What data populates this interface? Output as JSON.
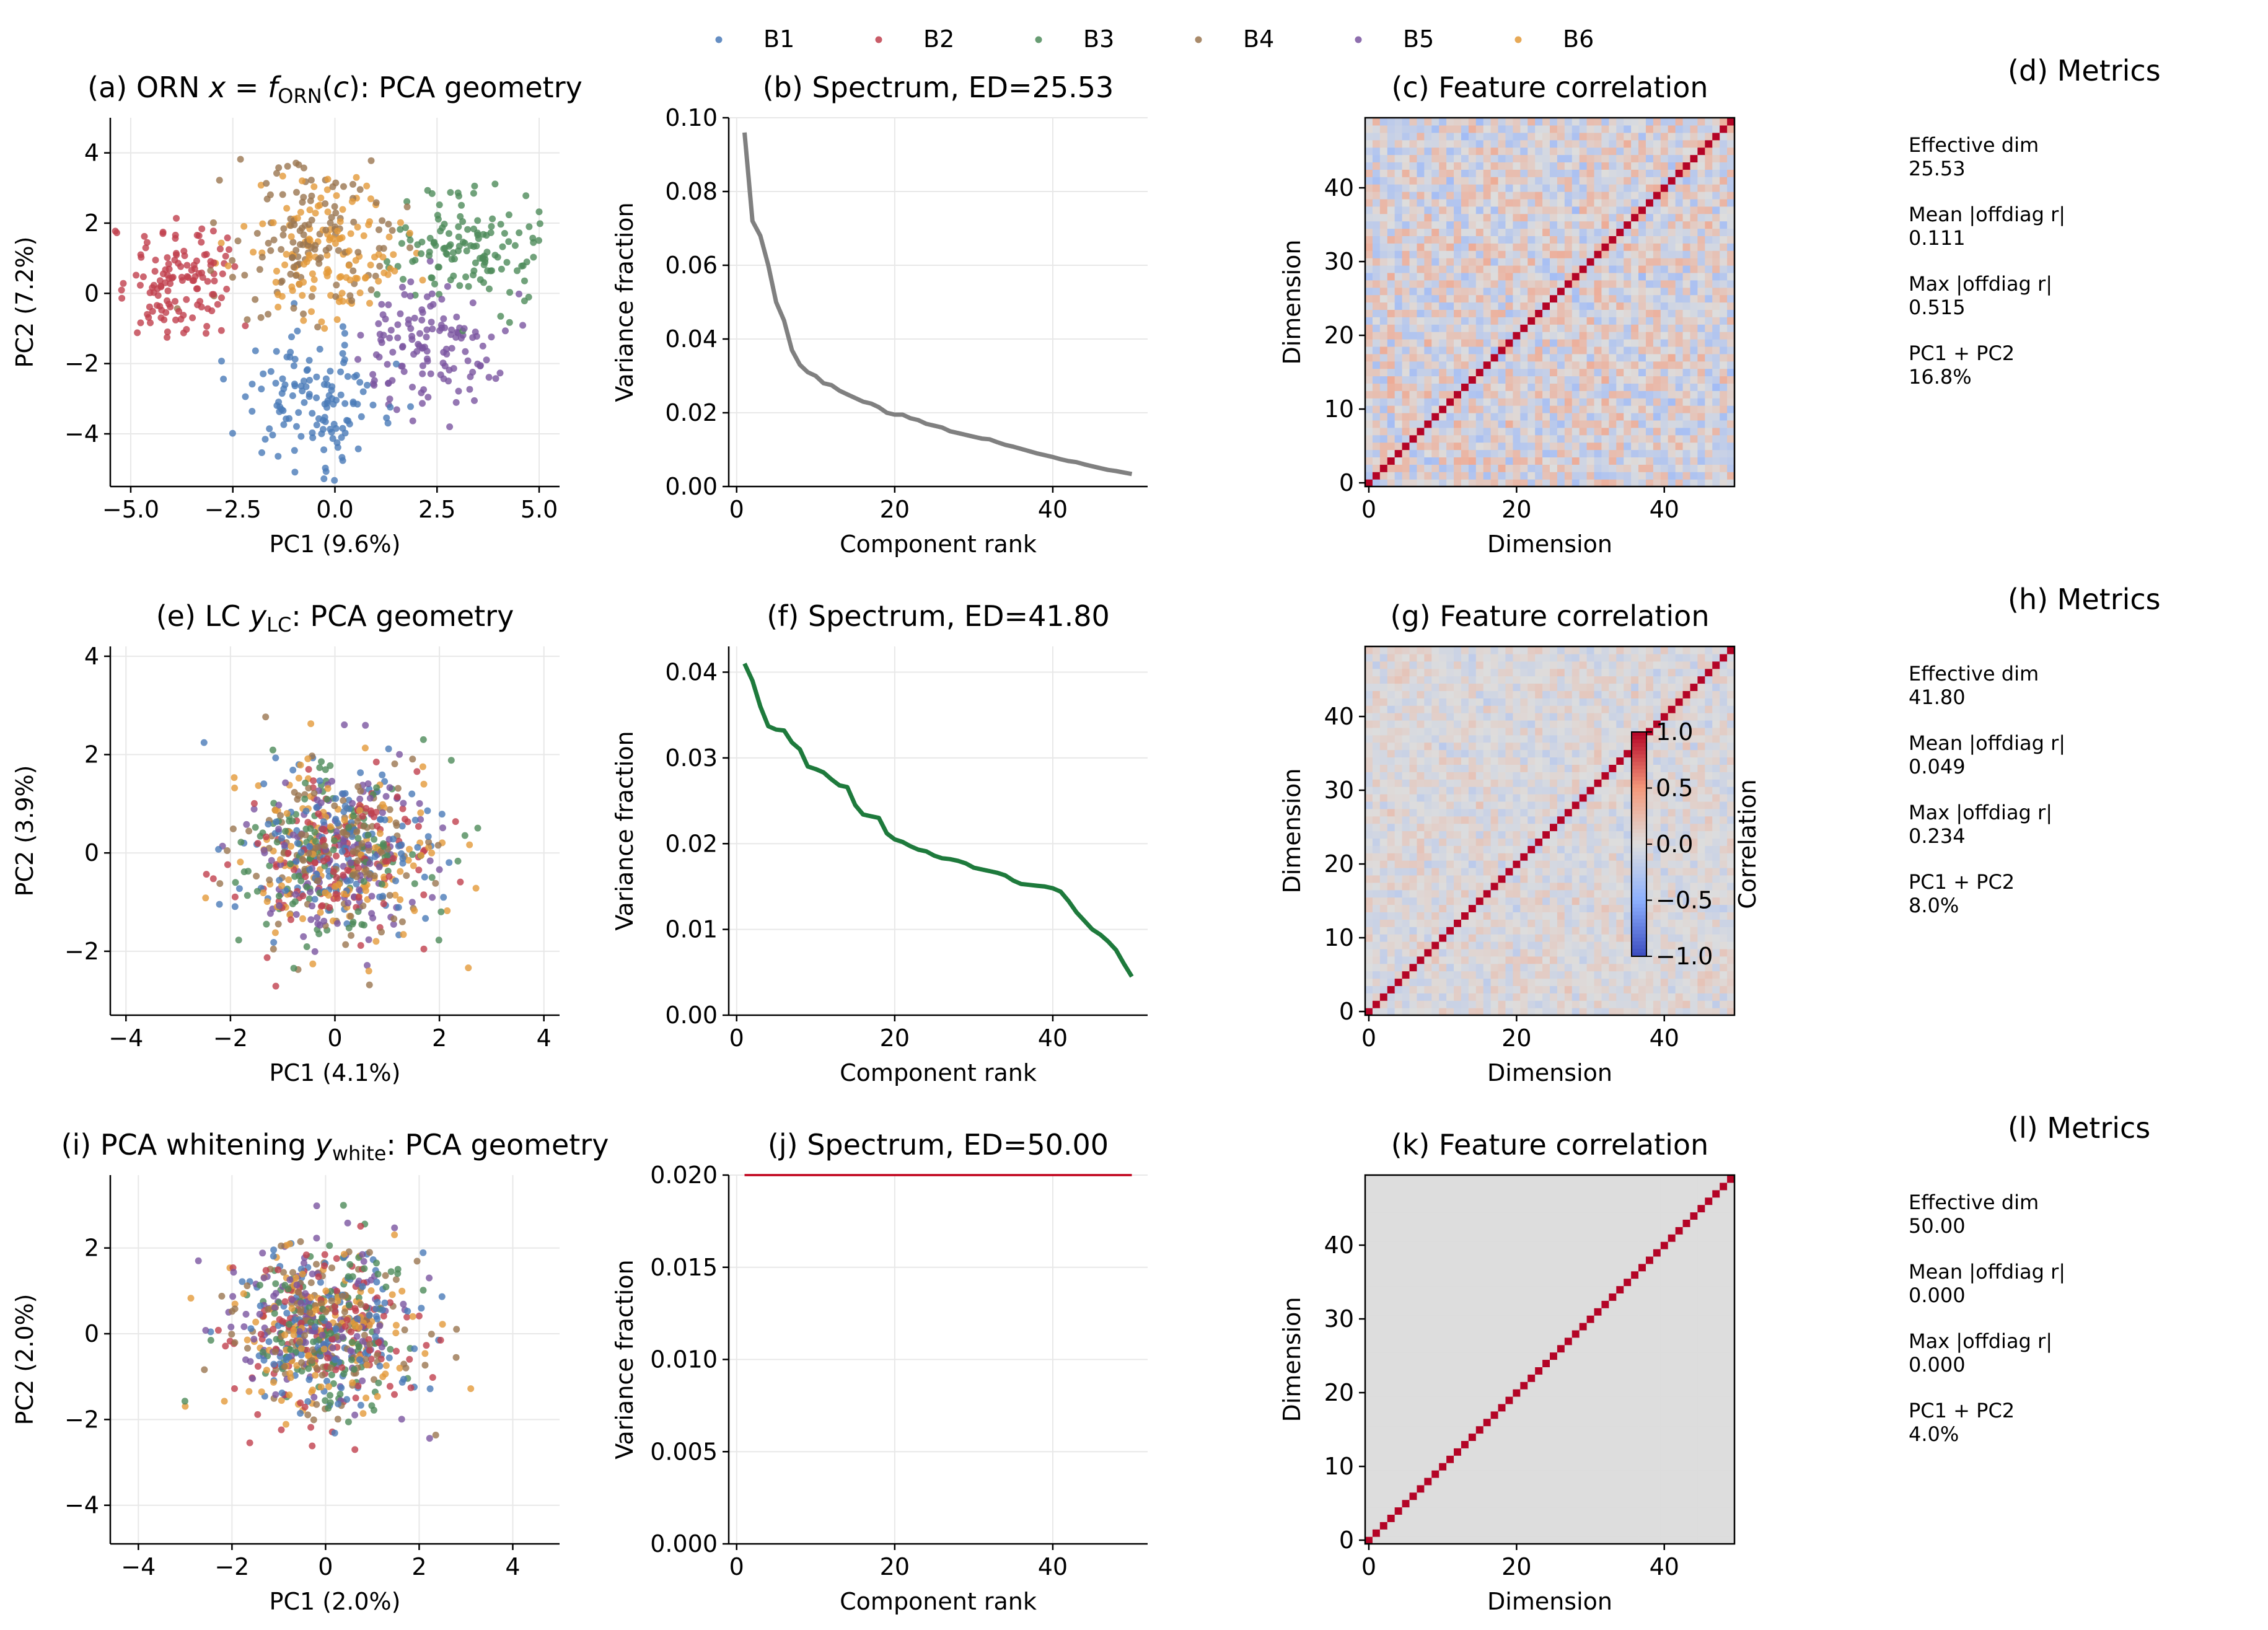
{
  "legend": {
    "entries": [
      "B1",
      "B2",
      "B3",
      "B4",
      "B5",
      "B6"
    ],
    "colors": [
      "#4a7ab8",
      "#c0404e",
      "#4e8b5a",
      "#9a7550",
      "#7a55a0",
      "#e39a3a"
    ]
  },
  "rows": [
    {
      "scatter_title_parts": [
        "(a) ORN ",
        "x",
        " = ",
        "f",
        "ORN",
        "(",
        "c",
        "): PCA geometry"
      ],
      "spectrum_title": "(b) Spectrum, ED=25.53",
      "corr_title": "(c) Feature correlation",
      "metrics_title": "(d) Metrics",
      "metrics": [
        {
          "label": "Effective dim",
          "value": "25.53"
        },
        {
          "label": "Mean |offdiag r|",
          "value": "0.111"
        },
        {
          "label": "Max |offdiag r|",
          "value": "0.515"
        },
        {
          "label": "PC1 + PC2",
          "value": "16.8%"
        }
      ]
    },
    {
      "scatter_title_parts": [
        "(e) LC ",
        "y",
        "LC",
        ": PCA geometry"
      ],
      "spectrum_title": "(f) Spectrum, ED=41.80",
      "corr_title": "(g) Feature correlation",
      "metrics_title": "(h) Metrics",
      "metrics": [
        {
          "label": "Effective dim",
          "value": "41.80"
        },
        {
          "label": "Mean |offdiag r|",
          "value": "0.049"
        },
        {
          "label": "Max |offdiag r|",
          "value": "0.234"
        },
        {
          "label": "PC1 + PC2",
          "value": "8.0%"
        }
      ]
    },
    {
      "scatter_title_parts": [
        "(i) PCA whitening ",
        "y",
        "white",
        ": PCA geometry"
      ],
      "spectrum_title": "(j) Spectrum, ED=50.00",
      "corr_title": "(k) Feature correlation",
      "metrics_title": "(l) Metrics",
      "metrics": [
        {
          "label": "Effective dim",
          "value": "50.00"
        },
        {
          "label": "Mean |offdiag r|",
          "value": "0.000"
        },
        {
          "label": "Max |offdiag r|",
          "value": "0.000"
        },
        {
          "label": "PC1 + PC2",
          "value": "4.0%"
        }
      ]
    }
  ],
  "colorbar": {
    "label": "Correlation",
    "ticks": [
      "1.0",
      "0.5",
      "0.0",
      "−0.5",
      "−1.0"
    ],
    "range": [
      -1,
      1
    ]
  },
  "chart_data": [
    {
      "panel": "a",
      "type": "scatter",
      "xlabel": "PC1 (9.6%)",
      "ylabel": "PC2 (7.2%)",
      "xlim": [
        -5.5,
        5.5
      ],
      "ylim": [
        -5.5,
        5
      ],
      "xticks": [
        -5,
        -2.5,
        0,
        2.5,
        5
      ],
      "xtick_labels": [
        "−5.0",
        "−2.5",
        "0.0",
        "2.5",
        "5.0"
      ],
      "yticks": [
        -4,
        -2,
        0,
        2,
        4
      ],
      "ytick_labels": [
        "−4",
        "−2",
        "0",
        "2",
        "4"
      ],
      "grid": true,
      "points_per_group": 130,
      "series": [
        {
          "name": "B1",
          "center": [
            -0.5,
            -3.0
          ],
          "spread": [
            0.9,
            0.9
          ]
        },
        {
          "name": "B2",
          "center": [
            -3.8,
            0.4
          ],
          "spread": [
            0.8,
            0.9
          ]
        },
        {
          "name": "B3",
          "center": [
            3.2,
            1.3
          ],
          "spread": [
            0.9,
            0.8
          ]
        },
        {
          "name": "B4",
          "center": [
            -0.6,
            1.6
          ],
          "spread": [
            1.0,
            1.1
          ]
        },
        {
          "name": "B5",
          "center": [
            2.3,
            -1.6
          ],
          "spread": [
            0.9,
            0.9
          ]
        },
        {
          "name": "B6",
          "center": [
            -0.3,
            1.3
          ],
          "spread": [
            1.0,
            0.9
          ]
        }
      ]
    },
    {
      "panel": "b",
      "type": "line",
      "xlabel": "Component rank",
      "ylabel": "Variance fraction",
      "xlim": [
        -1,
        52
      ],
      "ylim": [
        0,
        0.1
      ],
      "xticks": [
        0,
        20,
        40
      ],
      "xtick_labels": [
        "0",
        "20",
        "40"
      ],
      "yticks": [
        0,
        0.02,
        0.04,
        0.06,
        0.08,
        0.1
      ],
      "ytick_labels": [
        "0.00",
        "0.02",
        "0.04",
        "0.06",
        "0.08",
        "0.10"
      ],
      "grid": true,
      "color": "#808080",
      "x": [
        1,
        2,
        3,
        4,
        5,
        6,
        7,
        8,
        9,
        10,
        11,
        12,
        13,
        14,
        15,
        16,
        17,
        18,
        19,
        20,
        21,
        22,
        23,
        24,
        25,
        26,
        27,
        28,
        29,
        30,
        31,
        32,
        33,
        34,
        35,
        36,
        37,
        38,
        39,
        40,
        41,
        42,
        43,
        44,
        45,
        46,
        47,
        48,
        49,
        50
      ],
      "values": [
        0.096,
        0.072,
        0.068,
        0.06,
        0.05,
        0.045,
        0.037,
        0.033,
        0.031,
        0.03,
        0.028,
        0.0275,
        0.026,
        0.025,
        0.024,
        0.023,
        0.0225,
        0.0215,
        0.02,
        0.0195,
        0.0195,
        0.0185,
        0.018,
        0.017,
        0.0165,
        0.016,
        0.015,
        0.0145,
        0.014,
        0.0135,
        0.013,
        0.0128,
        0.012,
        0.0113,
        0.0108,
        0.0102,
        0.0096,
        0.009,
        0.0085,
        0.008,
        0.0074,
        0.0069,
        0.0066,
        0.006,
        0.0055,
        0.005,
        0.0045,
        0.0042,
        0.0038,
        0.0034
      ]
    },
    {
      "panel": "c",
      "type": "heatmap",
      "xlabel": "Dimension",
      "ylabel": "Dimension",
      "size": 50,
      "diagonal": 1.0,
      "offdiag_amplitude": 0.32,
      "cmap": "coolwarm",
      "range": [
        -1,
        1
      ],
      "xticks": [
        0,
        20,
        40
      ],
      "xtick_labels": [
        "0",
        "20",
        "40"
      ],
      "yticks": [
        0,
        10,
        20,
        30,
        40
      ],
      "ytick_labels": [
        "0",
        "10",
        "20",
        "30",
        "40"
      ]
    },
    {
      "panel": "e",
      "type": "scatter",
      "xlabel": "PC1 (4.1%)",
      "ylabel": "PC2 (3.9%)",
      "xlim": [
        -4.3,
        4.3
      ],
      "ylim": [
        -3.3,
        4.2
      ],
      "xticks": [
        -4,
        -2,
        0,
        2,
        4
      ],
      "xtick_labels": [
        "−4",
        "−2",
        "0",
        "2",
        "4"
      ],
      "yticks": [
        -2,
        0,
        2,
        4
      ],
      "ytick_labels": [
        "−2",
        "0",
        "2",
        "4"
      ],
      "grid": true,
      "points_per_group": 130,
      "series": [
        {
          "name": "B1",
          "center": [
            0,
            0
          ],
          "spread": [
            0.9,
            0.85
          ]
        },
        {
          "name": "B2",
          "center": [
            0,
            0
          ],
          "spread": [
            0.9,
            0.85
          ]
        },
        {
          "name": "B3",
          "center": [
            0,
            0
          ],
          "spread": [
            0.95,
            0.9
          ]
        },
        {
          "name": "B4",
          "center": [
            0,
            0
          ],
          "spread": [
            0.9,
            0.85
          ]
        },
        {
          "name": "B5",
          "center": [
            0,
            0
          ],
          "spread": [
            0.9,
            0.85
          ]
        },
        {
          "name": "B6",
          "center": [
            0,
            0
          ],
          "spread": [
            1.0,
            0.9
          ]
        }
      ]
    },
    {
      "panel": "f",
      "type": "line",
      "xlabel": "Component rank",
      "ylabel": "Variance fraction",
      "xlim": [
        -1,
        52
      ],
      "ylim": [
        0,
        0.043
      ],
      "xticks": [
        0,
        20,
        40
      ],
      "xtick_labels": [
        "0",
        "20",
        "40"
      ],
      "yticks": [
        0,
        0.01,
        0.02,
        0.03,
        0.04
      ],
      "ytick_labels": [
        "0.00",
        "0.01",
        "0.02",
        "0.03",
        "0.04"
      ],
      "grid": true,
      "color": "#1e7a3c",
      "x": [
        1,
        2,
        3,
        4,
        5,
        6,
        7,
        8,
        9,
        10,
        11,
        12,
        13,
        14,
        15,
        16,
        17,
        18,
        19,
        20,
        21,
        22,
        23,
        24,
        25,
        26,
        27,
        28,
        29,
        30,
        31,
        32,
        33,
        34,
        35,
        36,
        37,
        38,
        39,
        40,
        41,
        42,
        43,
        44,
        45,
        46,
        47,
        48,
        49,
        50
      ],
      "values": [
        0.041,
        0.039,
        0.036,
        0.0337,
        0.0333,
        0.0332,
        0.0318,
        0.031,
        0.029,
        0.0287,
        0.0283,
        0.0275,
        0.0268,
        0.0266,
        0.0245,
        0.0234,
        0.0232,
        0.023,
        0.0212,
        0.0205,
        0.0202,
        0.0197,
        0.0193,
        0.0191,
        0.0186,
        0.0183,
        0.0182,
        0.018,
        0.0177,
        0.0172,
        0.017,
        0.0168,
        0.0166,
        0.0163,
        0.0157,
        0.0153,
        0.0152,
        0.0151,
        0.015,
        0.0148,
        0.0144,
        0.0133,
        0.012,
        0.011,
        0.01,
        0.0094,
        0.0086,
        0.0076,
        0.006,
        0.0045
      ]
    },
    {
      "panel": "g",
      "type": "heatmap",
      "xlabel": "Dimension",
      "ylabel": "Dimension",
      "size": 50,
      "diagonal": 1.0,
      "offdiag_amplitude": 0.15,
      "cmap": "coolwarm",
      "range": [
        -1,
        1
      ],
      "xticks": [
        0,
        20,
        40
      ],
      "xtick_labels": [
        "0",
        "20",
        "40"
      ],
      "yticks": [
        0,
        10,
        20,
        30,
        40
      ],
      "ytick_labels": [
        "0",
        "10",
        "20",
        "30",
        "40"
      ]
    },
    {
      "panel": "i",
      "type": "scatter",
      "xlabel": "PC1 (2.0%)",
      "ylabel": "PC2 (2.0%)",
      "xlim": [
        -4.6,
        5.0
      ],
      "ylim": [
        -4.9,
        3.7
      ],
      "xticks": [
        -4,
        -2,
        0,
        2,
        4
      ],
      "xtick_labels": [
        "−4",
        "−2",
        "0",
        "2",
        "4"
      ],
      "yticks": [
        -4,
        -2,
        0,
        2
      ],
      "ytick_labels": [
        "−4",
        "−2",
        "0",
        "2"
      ],
      "grid": true,
      "points_per_group": 130,
      "series": [
        {
          "name": "B1",
          "center": [
            0,
            0
          ],
          "spread": [
            1.0,
            1.0
          ]
        },
        {
          "name": "B2",
          "center": [
            0,
            0
          ],
          "spread": [
            1.0,
            1.0
          ]
        },
        {
          "name": "B3",
          "center": [
            0,
            0
          ],
          "spread": [
            1.0,
            1.0
          ]
        },
        {
          "name": "B4",
          "center": [
            0,
            0
          ],
          "spread": [
            1.0,
            1.0
          ]
        },
        {
          "name": "B5",
          "center": [
            0,
            0
          ],
          "spread": [
            1.0,
            1.0
          ]
        },
        {
          "name": "B6",
          "center": [
            0,
            0
          ],
          "spread": [
            1.0,
            1.0
          ]
        }
      ]
    },
    {
      "panel": "j",
      "type": "line",
      "xlabel": "Component rank",
      "ylabel": "Variance fraction",
      "xlim": [
        -1,
        52
      ],
      "ylim": [
        0,
        0.02
      ],
      "xticks": [
        0,
        20,
        40
      ],
      "xtick_labels": [
        "0",
        "20",
        "40"
      ],
      "yticks": [
        0,
        0.005,
        0.01,
        0.015,
        0.02
      ],
      "ytick_labels": [
        "0.000",
        "0.005",
        "0.010",
        "0.015",
        "0.020"
      ],
      "grid": true,
      "color": "#c0001a",
      "x": [
        1,
        50
      ],
      "values": [
        0.02,
        0.02
      ]
    },
    {
      "panel": "k",
      "type": "heatmap",
      "xlabel": "Dimension",
      "ylabel": "Dimension",
      "size": 50,
      "diagonal": 1.0,
      "offdiag_amplitude": 0.0,
      "cmap": "coolwarm",
      "range": [
        -1,
        1
      ],
      "xticks": [
        0,
        20,
        40
      ],
      "xtick_labels": [
        "0",
        "20",
        "40"
      ],
      "yticks": [
        0,
        10,
        20,
        30,
        40
      ],
      "ytick_labels": [
        "0",
        "10",
        "20",
        "30",
        "40"
      ]
    }
  ]
}
